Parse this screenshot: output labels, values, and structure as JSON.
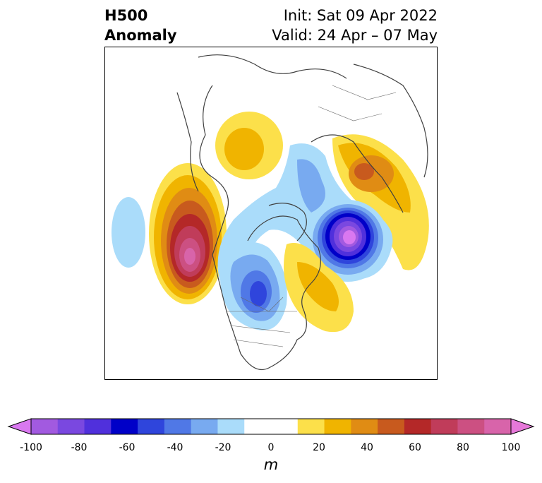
{
  "title": {
    "left_line1": "H500",
    "left_line2": "Anomaly",
    "right_line1": "Init: Sat 09 Apr 2022",
    "right_line2": "Valid: 24 Apr – 07 May"
  },
  "map": {
    "field": "500 hPa geopotential height anomaly",
    "projection": "north polar stereographic",
    "anomaly_centers": [
      {
        "region": "Gulf of Alaska / NE Pacific",
        "sign": "positive",
        "max_m": 90
      },
      {
        "region": "North Pacific (west)",
        "sign": "negative",
        "min_m": -20
      },
      {
        "region": "Central Canada / Hudson Bay",
        "sign": "negative",
        "min_m": -50
      },
      {
        "region": "Eastern Canada / Labrador",
        "sign": "positive",
        "max_m": 30
      },
      {
        "region": "North Atlantic / Scandinavia",
        "sign": "negative",
        "min_m": -100
      },
      {
        "region": "Western Russia / Urals",
        "sign": "positive",
        "max_m": 40
      },
      {
        "region": "Central Siberia",
        "sign": "positive",
        "max_m": 20
      }
    ]
  },
  "colorbar": {
    "ticks": [
      "-100",
      "-80",
      "-60",
      "-40",
      "-20",
      "0",
      "20",
      "40",
      "60",
      "80",
      "100"
    ],
    "unit": "m",
    "min_color": "#d978f0",
    "max_color": "#e678d9",
    "colors": [
      "#a25ae0",
      "#7a48e0",
      "#5030dc",
      "#0000c8",
      "#2f45dc",
      "#5078e6",
      "#78aaf0",
      "#aadcfa",
      "#ffffff",
      "#ffffff",
      "#fce04a",
      "#f0b400",
      "#e08c14",
      "#c85a1e",
      "#b42828",
      "#c03c5a",
      "#cc5082",
      "#d864aa"
    ]
  }
}
